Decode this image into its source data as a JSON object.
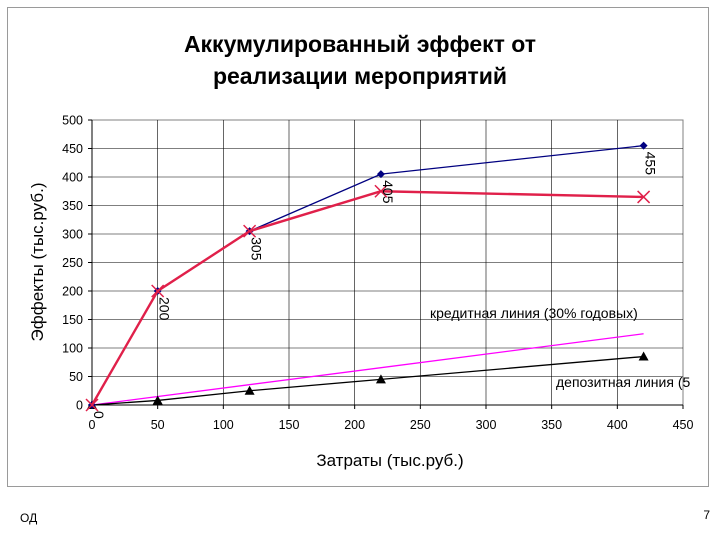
{
  "chart_data": {
    "type": "line",
    "title": [
      "Аккумулированный эффект от",
      "реализации мероприятий"
    ],
    "xlabel": "Затраты (тыс.руб.)",
    "ylabel": "Эффекты (тыс.руб.)",
    "xlim": [
      0,
      450
    ],
    "ylim": [
      0,
      500
    ],
    "x_ticks": [
      "0",
      "50",
      "100",
      "150",
      "200",
      "250",
      "300",
      "350",
      "400",
      "450"
    ],
    "y_ticks": [
      "0",
      "50",
      "100",
      "150",
      "200",
      "250",
      "300",
      "350",
      "400",
      "450",
      "500"
    ],
    "grid": true,
    "series": [
      {
        "color": "#000080",
        "marker": "diamond",
        "points": [
          [
            0,
            0
          ],
          [
            50,
            200
          ],
          [
            120,
            305
          ],
          [
            220,
            405
          ],
          [
            420,
            455
          ]
        ],
        "labels": [
          "0",
          "200",
          "305",
          "405",
          "455"
        ]
      },
      {
        "color": "#e0204a",
        "marker": "x",
        "points": [
          [
            0,
            0
          ],
          [
            50,
            200
          ],
          [
            120,
            305
          ],
          [
            220,
            375
          ],
          [
            420,
            365
          ]
        ]
      },
      {
        "name": "кредитная линия (30% годовых)",
        "color": "#ff00ff",
        "marker": "none",
        "points": [
          [
            0,
            0
          ],
          [
            420,
            125
          ]
        ]
      },
      {
        "name": "депозитная линия (5",
        "color": "#000000",
        "marker": "triangle",
        "points": [
          [
            0,
            0
          ],
          [
            50,
            8
          ],
          [
            120,
            25
          ],
          [
            220,
            45
          ],
          [
            420,
            85
          ]
        ]
      }
    ]
  },
  "footer": {
    "left_text": "ОД",
    "page_number": "7"
  }
}
